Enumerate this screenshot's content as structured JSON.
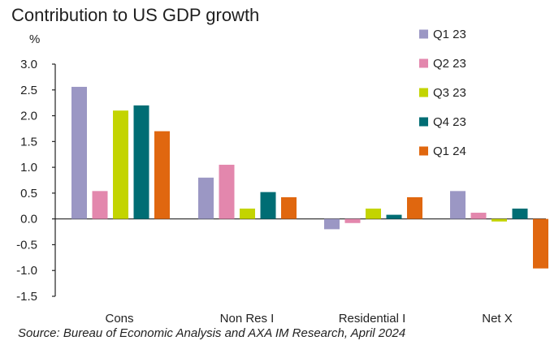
{
  "chart_data": {
    "type": "bar",
    "title": "Contribution to US GDP growth",
    "ylabel": "%",
    "xlabel": "",
    "categories": [
      "Cons",
      "Non Res I",
      "Residential I",
      "Net X"
    ],
    "series": [
      {
        "name": "Q1 23",
        "color": "#9b97c4",
        "values": [
          2.56,
          0.8,
          -0.2,
          0.54
        ]
      },
      {
        "name": "Q2 23",
        "color": "#e387ad",
        "values": [
          0.54,
          1.05,
          -0.08,
          0.12
        ]
      },
      {
        "name": "Q3 23",
        "color": "#c3d400",
        "values": [
          2.1,
          0.2,
          0.2,
          -0.05
        ]
      },
      {
        "name": "Q4 23",
        "color": "#006d74",
        "values": [
          2.2,
          0.52,
          0.08,
          0.2
        ]
      },
      {
        "name": "Q1 24",
        "color": "#e0670f",
        "values": [
          1.7,
          0.42,
          0.42,
          -0.96
        ]
      }
    ],
    "ylim": [
      -1.5,
      3.0
    ],
    "yticks": [
      "3.0",
      "2.5",
      "2.0",
      "1.5",
      "1.0",
      "0.5",
      "0.0",
      "-0.5",
      "-1.0",
      "-1.5"
    ],
    "grid": false,
    "legend_position": "top-right"
  },
  "source": "Source: Bureau of Economic Analysis and AXA IM Research, April 2024"
}
